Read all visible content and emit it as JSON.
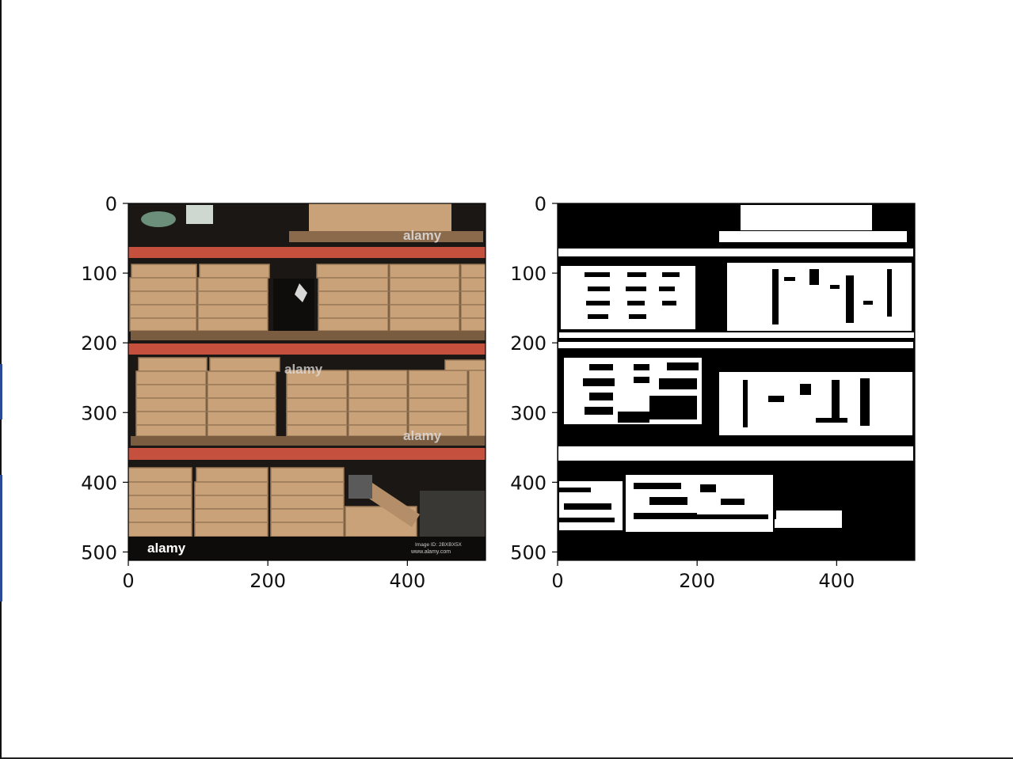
{
  "figure": {
    "panels": [
      {
        "name": "original-image",
        "description": "warehouse-shelves-photo"
      },
      {
        "name": "binary-mask",
        "description": "thresholded-mask"
      }
    ]
  },
  "watermarks": {
    "brand": "alamy",
    "site": "www.alamy.com",
    "image_id": "Image ID: 2BXBX5X"
  },
  "colors": {
    "shelf_beam": "#c4503d",
    "box": "#c9a27a",
    "box_dark": "#a98462",
    "background_dark": "#111111",
    "mask_fg": "#ffffff",
    "mask_bg": "#000000"
  },
  "chart_data": [
    {
      "type": "image",
      "title": "",
      "xlim": [
        0,
        512
      ],
      "ylim": [
        512,
        0
      ],
      "xticks": [
        0,
        200,
        400
      ],
      "yticks": [
        0,
        100,
        200,
        300,
        400,
        500
      ],
      "xtick_labels": [
        "0",
        "200",
        "400"
      ],
      "ytick_labels": [
        "0",
        "100",
        "200",
        "300",
        "400",
        "500"
      ]
    },
    {
      "type": "image",
      "title": "",
      "xlim": [
        0,
        512
      ],
      "ylim": [
        512,
        0
      ],
      "xticks": [
        0,
        200,
        400
      ],
      "yticks": [
        0,
        100,
        200,
        300,
        400,
        500
      ],
      "xtick_labels": [
        "0",
        "200",
        "400"
      ],
      "ytick_labels": [
        "0",
        "100",
        "200",
        "300",
        "400",
        "500"
      ]
    }
  ]
}
